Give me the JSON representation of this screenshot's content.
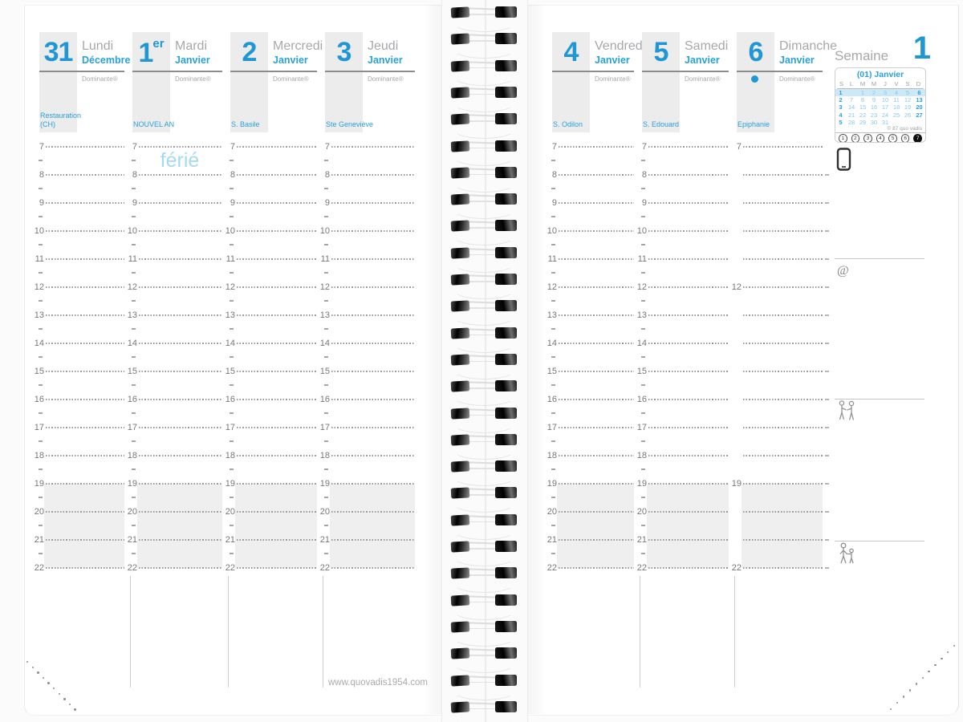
{
  "week": {
    "label": "Semaine",
    "number": "1"
  },
  "footer": {
    "url": "www.quovadis1954.com"
  },
  "colors": {
    "accent_blue": "#1e97d4",
    "bold_blue": "#29a1da",
    "light_blue_ferie": "#a6d9f2",
    "gray_text": "#a6a8ab",
    "shade": "#efeff0",
    "highlight_band": "#cde9f7"
  },
  "hour_labels": [
    7,
    8,
    9,
    10,
    11,
    12,
    13,
    14,
    15,
    16,
    17,
    18,
    19,
    20,
    21,
    22
  ],
  "evening_shade_from": 19,
  "days": [
    {
      "num": "31",
      "name": "Lundi",
      "month": "Décembre",
      "brand": "Dominante®",
      "saint": "Restauration (CH)"
    },
    {
      "num": "1",
      "num_suffix": "er",
      "name": "Mardi",
      "month": "Janvier",
      "brand": "Dominante®",
      "saint": "NOUVEL AN",
      "ferie": "férié"
    },
    {
      "num": "2",
      "name": "Mercredi",
      "month": "Janvier",
      "brand": "Dominante®",
      "saint": "S. Basile"
    },
    {
      "num": "3",
      "name": "Jeudi",
      "month": "Janvier",
      "brand": "Dominante®",
      "saint": "Ste Geneviève"
    },
    {
      "num": "4",
      "name": "Vendredi",
      "month": "Janvier",
      "brand": "Dominante®",
      "saint": "S. Odilon"
    },
    {
      "num": "5",
      "name": "Samedi",
      "month": "Janvier",
      "brand": "Dominante®",
      "saint": "S. Edouard"
    },
    {
      "num": "6",
      "name": "Dimanche",
      "month": "Janvier",
      "brand": "Dominante®",
      "saint": "Epiphanie",
      "sunday_dot": true,
      "labeled_hours": [
        7,
        12,
        19,
        22
      ],
      "half_hour_marks": false
    }
  ],
  "minicalendar": {
    "title": "(01) Janvier",
    "dow": [
      "S",
      "L",
      "M",
      "M",
      "J",
      "V",
      "S",
      "D"
    ],
    "weeks": [
      {
        "wk": "1",
        "days": [
          "",
          "1",
          "2",
          "3",
          "4",
          "5",
          "6"
        ],
        "highlight": true
      },
      {
        "wk": "2",
        "days": [
          "7",
          "8",
          "9",
          "10",
          "11",
          "12",
          "13"
        ]
      },
      {
        "wk": "3",
        "days": [
          "14",
          "15",
          "16",
          "17",
          "18",
          "19",
          "20"
        ]
      },
      {
        "wk": "4",
        "days": [
          "21",
          "22",
          "23",
          "24",
          "25",
          "26",
          "27"
        ]
      },
      {
        "wk": "5",
        "days": [
          "28",
          "29",
          "30",
          "31",
          "",
          "",
          ""
        ]
      }
    ],
    "copyright": "© 87 quo vadis",
    "week_selector": [
      "1",
      "2",
      "3",
      "4",
      "5",
      "6",
      "7"
    ],
    "active_selector": "7"
  },
  "sidebar": {
    "sections": [
      {
        "icon": "phone"
      },
      {
        "icon": "at"
      },
      {
        "icon": "meeting"
      },
      {
        "icon": "family"
      }
    ]
  }
}
